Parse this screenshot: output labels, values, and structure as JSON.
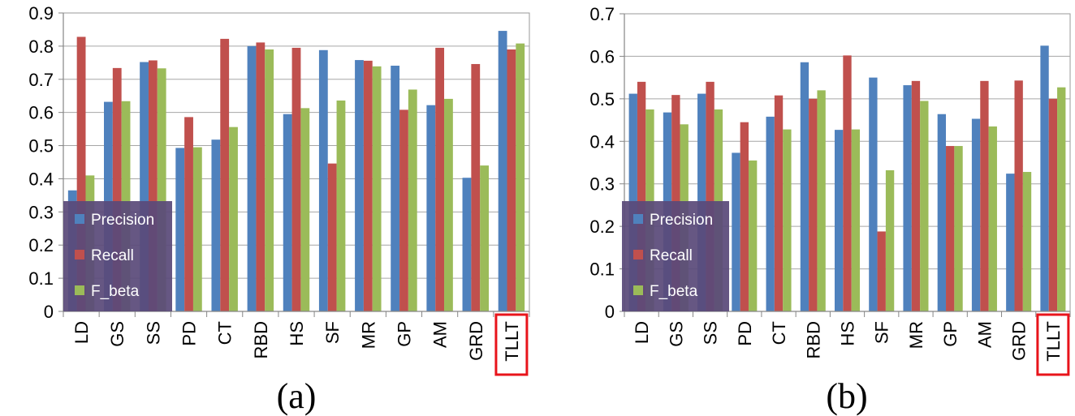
{
  "chart_data": [
    {
      "type": "bar",
      "caption": "(a)",
      "categories": [
        "LD",
        "GS",
        "SS",
        "PD",
        "CT",
        "RBD",
        "HS",
        "SF",
        "MR",
        "GP",
        "AM",
        "GRD",
        "TLLT"
      ],
      "highlight_category": "TLLT",
      "ylim": [
        0,
        0.9
      ],
      "yticks": [
        "0",
        "0.1",
        "0.2",
        "0.3",
        "0.4",
        "0.5",
        "0.6",
        "0.7",
        "0.8",
        "0.9"
      ],
      "legend_position": "bottom-left",
      "series": [
        {
          "name": "Precision",
          "color": "#4F81BD",
          "values": [
            0.365,
            0.632,
            0.752,
            0.493,
            0.518,
            0.8,
            0.595,
            0.788,
            0.758,
            0.741,
            0.622,
            0.403,
            0.846
          ]
        },
        {
          "name": "Recall",
          "color": "#C0504D",
          "values": [
            0.828,
            0.734,
            0.757,
            0.586,
            0.822,
            0.811,
            0.795,
            0.446,
            0.756,
            0.608,
            0.795,
            0.746,
            0.79
          ]
        },
        {
          "name": "F_beta",
          "color": "#9BBB59",
          "values": [
            0.41,
            0.634,
            0.733,
            0.495,
            0.556,
            0.79,
            0.613,
            0.636,
            0.739,
            0.669,
            0.641,
            0.44,
            0.808
          ]
        }
      ]
    },
    {
      "type": "bar",
      "caption": "(b)",
      "categories": [
        "LD",
        "GS",
        "SS",
        "PD",
        "CT",
        "RBD",
        "HS",
        "SF",
        "MR",
        "GP",
        "AM",
        "GRD",
        "TLLT"
      ],
      "highlight_category": "TLLT",
      "ylim": [
        0,
        0.7
      ],
      "yticks": [
        "0",
        "0.1",
        "0.2",
        "0.3",
        "0.4",
        "0.5",
        "0.6",
        "0.7"
      ],
      "legend_position": "bottom-left",
      "series": [
        {
          "name": "Precision",
          "color": "#4F81BD",
          "values": [
            0.512,
            0.468,
            0.512,
            0.373,
            0.458,
            0.586,
            0.427,
            0.55,
            0.532,
            0.464,
            0.453,
            0.324,
            0.625
          ]
        },
        {
          "name": "Recall",
          "color": "#C0504D",
          "values": [
            0.54,
            0.509,
            0.54,
            0.445,
            0.508,
            0.5,
            0.602,
            0.188,
            0.542,
            0.389,
            0.542,
            0.543,
            0.5
          ]
        },
        {
          "name": "F_beta",
          "color": "#9BBB59",
          "values": [
            0.475,
            0.44,
            0.475,
            0.355,
            0.428,
            0.52,
            0.428,
            0.332,
            0.495,
            0.389,
            0.435,
            0.328,
            0.527
          ]
        }
      ]
    }
  ]
}
